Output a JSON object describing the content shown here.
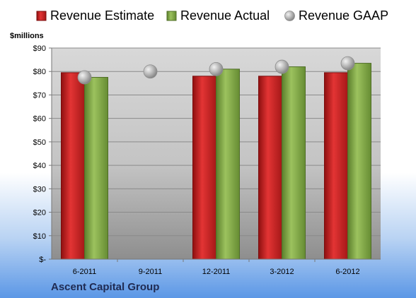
{
  "chart_data": {
    "type": "bar",
    "categories": [
      "6-2011",
      "9-2011",
      "12-2011",
      "3-2012",
      "6-2012"
    ],
    "series": [
      {
        "name": "Revenue Estimate",
        "kind": "bar",
        "color": "#d42a2a",
        "values": [
          79.5,
          null,
          78,
          78,
          79.5
        ]
      },
      {
        "name": "Revenue Actual",
        "kind": "bar",
        "color": "#86ae4c",
        "values": [
          77.5,
          null,
          81,
          82,
          83.5
        ]
      },
      {
        "name": "Revenue GAAP",
        "kind": "marker",
        "color": "#a9a9a9",
        "values": [
          77.5,
          80,
          81,
          82,
          83.5
        ]
      }
    ],
    "ylabel": "$millions",
    "ylim": [
      0,
      90
    ],
    "yticks": [
      0,
      10,
      20,
      30,
      40,
      50,
      60,
      70,
      80,
      90
    ],
    "ytick_labels": [
      "$-",
      "$10",
      "$20",
      "$30",
      "$40",
      "$50",
      "$60",
      "$70",
      "$80",
      "$90"
    ],
    "grid": true,
    "legend": "top",
    "source_label": "Ascent Capital Group"
  }
}
